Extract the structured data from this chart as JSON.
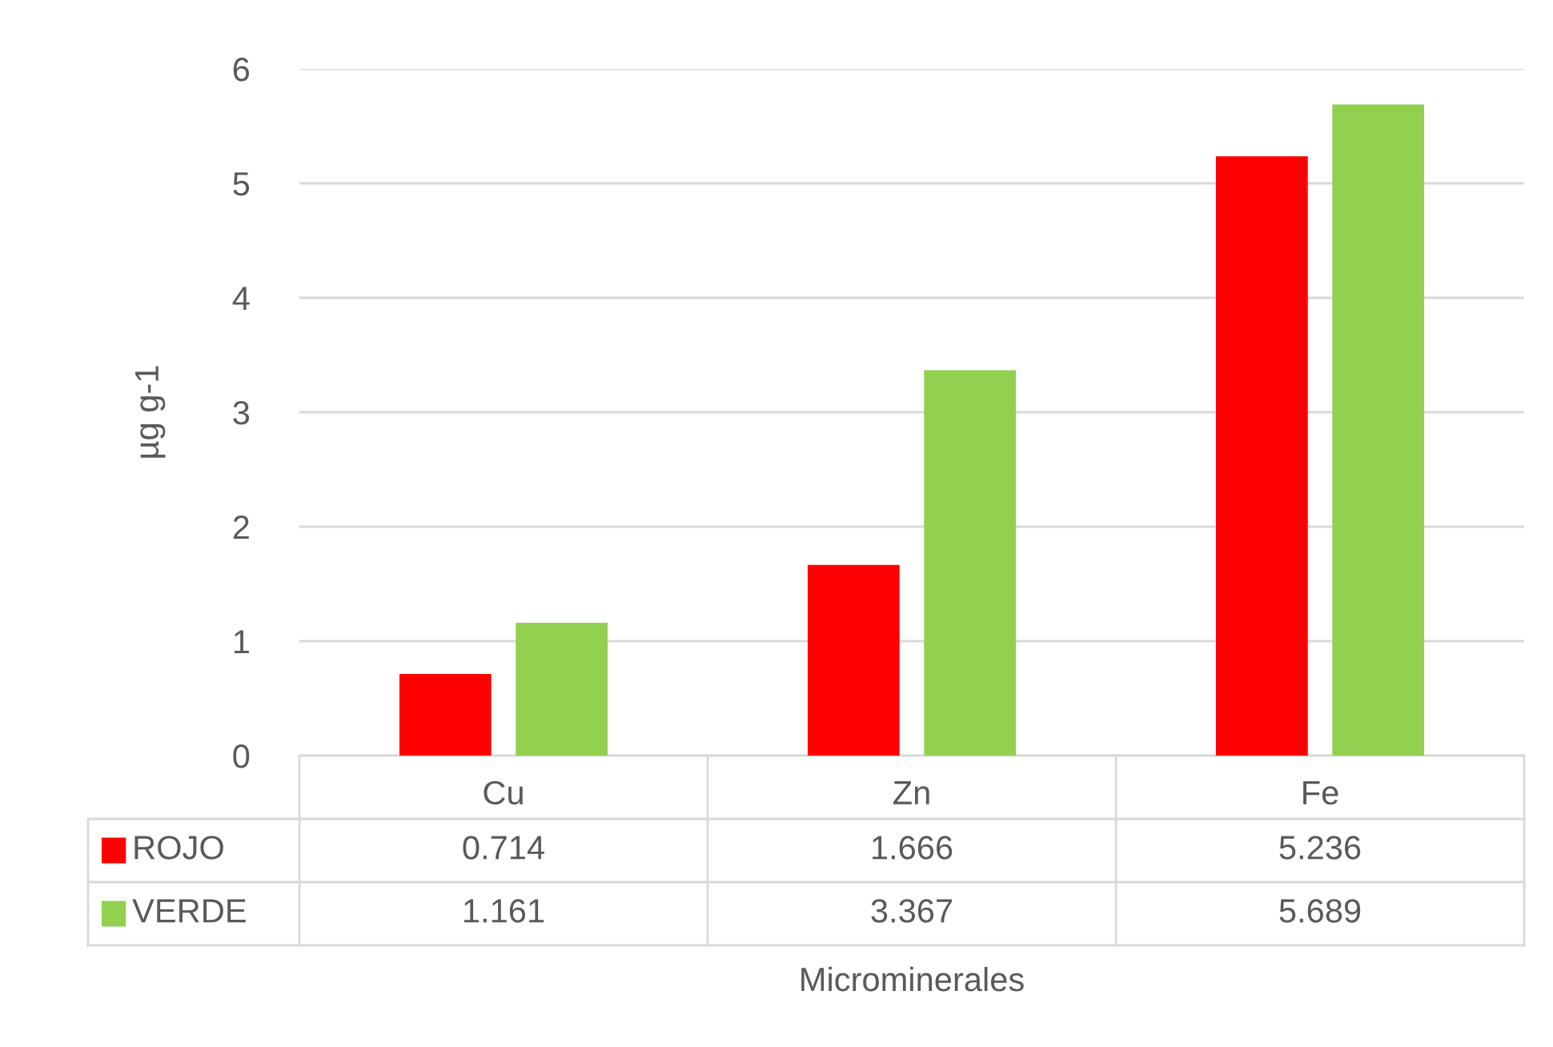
{
  "chart_data": {
    "type": "bar",
    "xlabel": "Microminerales",
    "ylabel": "µg g-1",
    "categories": [
      "Cu",
      "Zn",
      "Fe"
    ],
    "series": [
      {
        "name": "ROJO",
        "color": "#ff0000",
        "values": [
          0.714,
          1.666,
          5.236
        ]
      },
      {
        "name": "VERDE",
        "color": "#92d050",
        "values": [
          1.161,
          3.367,
          5.689
        ]
      }
    ],
    "ylim": [
      0,
      6
    ],
    "yticks": [
      0,
      1,
      2,
      3,
      4,
      5,
      6
    ],
    "grid": "y",
    "legend": "bottom",
    "data_labels": true
  }
}
